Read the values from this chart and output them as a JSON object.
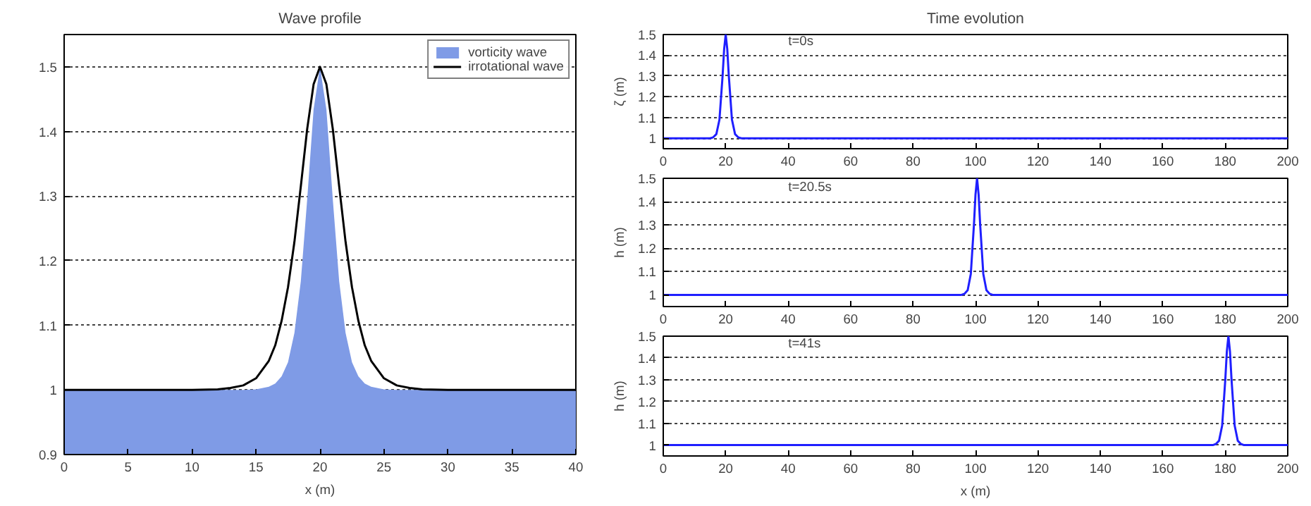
{
  "chart_data": [
    {
      "type": "area",
      "title": "Wave profile",
      "xlabel": "x (m)",
      "xlim": [
        0,
        40
      ],
      "ylim": [
        0.9,
        1.55
      ],
      "xticks": [
        0,
        5,
        10,
        15,
        20,
        25,
        30,
        35,
        40
      ],
      "yticks": [
        0.9,
        1,
        1.1,
        1.2,
        1.3,
        1.4,
        1.5
      ],
      "grid": "y",
      "legend": "top right",
      "series": [
        {
          "name": "vorticity wave",
          "type": "area",
          "color": "#7f9be6",
          "x": [
            0,
            10,
            14,
            15,
            16,
            16.5,
            17,
            17.5,
            18,
            18.5,
            19,
            19.5,
            20,
            20.5,
            21,
            21.5,
            22,
            22.5,
            23,
            23.5,
            24,
            25,
            26,
            30,
            40
          ],
          "values": [
            1,
            1,
            1,
            1.001,
            1.005,
            1.01,
            1.021,
            1.043,
            1.088,
            1.168,
            1.295,
            1.434,
            1.5,
            1.434,
            1.295,
            1.168,
            1.088,
            1.043,
            1.021,
            1.01,
            1.005,
            1.001,
            1,
            1,
            1
          ]
        },
        {
          "name": "irrotational wave",
          "type": "line",
          "color": "#000000",
          "x": [
            0,
            10,
            12,
            13,
            14,
            15,
            16,
            16.5,
            17,
            17.5,
            18,
            18.5,
            19,
            19.5,
            20,
            20.5,
            21,
            21.5,
            22,
            22.5,
            23,
            23.5,
            24,
            25,
            26,
            27,
            28,
            30,
            40
          ],
          "values": [
            1,
            1,
            1.001,
            1.003,
            1.007,
            1.018,
            1.045,
            1.069,
            1.107,
            1.159,
            1.229,
            1.315,
            1.404,
            1.473,
            1.5,
            1.473,
            1.404,
            1.315,
            1.229,
            1.159,
            1.107,
            1.069,
            1.045,
            1.018,
            1.007,
            1.003,
            1.001,
            1,
            1
          ]
        }
      ]
    },
    {
      "type": "line",
      "title": "Time evolution",
      "ylabel": "ζ (m)",
      "xlim": [
        0,
        200
      ],
      "ylim": [
        0.95,
        1.5
      ],
      "xticks": [
        0,
        20,
        40,
        60,
        80,
        100,
        120,
        140,
        160,
        180,
        200
      ],
      "yticks": [
        1,
        1.1,
        1.2,
        1.3,
        1.4,
        1.5
      ],
      "grid": "y",
      "annotations": [
        "t=0s"
      ],
      "series": [
        {
          "color": "#1f1fff",
          "x": [
            0,
            15,
            16,
            17,
            18,
            19,
            19.5,
            20,
            20.5,
            21,
            22,
            23,
            24,
            25,
            200
          ],
          "values": [
            1,
            1,
            1.005,
            1.02,
            1.09,
            1.3,
            1.43,
            1.5,
            1.43,
            1.3,
            1.09,
            1.02,
            1.005,
            1,
            1
          ]
        }
      ]
    },
    {
      "type": "line",
      "ylabel": "h (m)",
      "xlim": [
        0,
        200
      ],
      "ylim": [
        0.95,
        1.5
      ],
      "xticks": [
        0,
        20,
        40,
        60,
        80,
        100,
        120,
        140,
        160,
        180,
        200
      ],
      "yticks": [
        1,
        1.1,
        1.2,
        1.3,
        1.4,
        1.5
      ],
      "grid": "y",
      "annotations": [
        "t=20.5s"
      ],
      "series": [
        {
          "color": "#1f1fff",
          "x": [
            0,
            95.5,
            96.5,
            97.5,
            98.5,
            99.5,
            100,
            100.5,
            101,
            101.5,
            102.5,
            103.5,
            104.5,
            105.5,
            200
          ],
          "values": [
            1,
            1,
            1.005,
            1.02,
            1.09,
            1.3,
            1.43,
            1.5,
            1.43,
            1.3,
            1.09,
            1.02,
            1.005,
            1,
            1
          ]
        }
      ]
    },
    {
      "type": "line",
      "ylabel": "h (m)",
      "xlabel": "x (m)",
      "xlim": [
        0,
        200
      ],
      "ylim": [
        0.95,
        1.5
      ],
      "xticks": [
        0,
        20,
        40,
        60,
        80,
        100,
        120,
        140,
        160,
        180,
        200
      ],
      "yticks": [
        1,
        1.1,
        1.2,
        1.3,
        1.4,
        1.5
      ],
      "grid": "y",
      "annotations": [
        "t=41s"
      ],
      "series": [
        {
          "color": "#1f1fff",
          "x": [
            0,
            176,
            177,
            178,
            179,
            180,
            180.5,
            181,
            181.5,
            182,
            183,
            184,
            185,
            186,
            200
          ],
          "values": [
            1,
            1,
            1.005,
            1.02,
            1.09,
            1.3,
            1.43,
            1.5,
            1.43,
            1.3,
            1.09,
            1.02,
            1.005,
            1,
            1
          ]
        }
      ]
    }
  ]
}
